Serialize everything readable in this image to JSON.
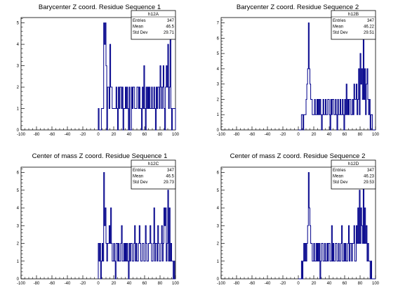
{
  "chart_data": [
    {
      "type": "histogram",
      "title": "Barycenter Z coord. Residue Sequence 1",
      "xlim": [
        -100,
        100
      ],
      "ylim": [
        0,
        5.25
      ],
      "xticks": [
        "-100",
        "-80",
        "-60",
        "-40",
        "-20",
        "0",
        "20",
        "40",
        "60",
        "80",
        "100"
      ],
      "yticks": [
        "0",
        "1",
        "2",
        "3",
        "4",
        "5"
      ],
      "bin_width": 1,
      "bin_start": 0,
      "values": [
        1,
        0,
        0,
        0,
        1,
        1,
        1,
        5,
        4,
        5,
        3,
        0,
        2,
        2,
        1,
        4,
        2,
        2,
        1,
        1,
        1,
        1,
        1,
        2,
        1,
        0,
        2,
        1,
        2,
        2,
        1,
        2,
        0,
        1,
        1,
        2,
        1,
        2,
        1,
        0,
        2,
        0,
        0,
        2,
        1,
        2,
        2,
        1,
        1,
        1,
        2,
        2,
        1,
        2,
        1,
        1,
        0,
        2,
        1,
        3,
        1,
        0,
        2,
        1,
        2,
        1,
        2,
        1,
        1,
        2,
        1,
        1,
        2,
        1,
        0,
        2,
        1,
        2,
        2,
        1,
        3,
        2,
        1,
        2,
        3,
        1,
        0,
        2,
        3,
        2,
        4,
        1,
        2,
        5,
        1,
        0,
        1,
        1,
        1,
        1
      ],
      "color": "#00008b",
      "stats": {
        "name": "h12A",
        "rows": [
          {
            "label": "Entries",
            "value": "347"
          },
          {
            "label": "Mean",
            "value": "46.5"
          },
          {
            "label": "Std Dev",
            "value": "29.71"
          }
        ]
      }
    },
    {
      "type": "histogram",
      "title": "Barycenter Z coord. Residue Sequence 2",
      "xlim": [
        -100,
        100
      ],
      "ylim": [
        0,
        7.35
      ],
      "xticks": [
        "-100",
        "-80",
        "-60",
        "-40",
        "-20",
        "0",
        "20",
        "40",
        "60",
        "80",
        "100"
      ],
      "yticks": [
        "0",
        "1",
        "2",
        "3",
        "4",
        "5",
        "6",
        "7"
      ],
      "bin_width": 1,
      "bin_start": 0,
      "values": [
        0,
        0,
        0,
        0,
        1,
        1,
        0,
        1,
        1,
        1,
        2,
        3,
        4,
        7,
        4,
        3,
        2,
        2,
        1,
        1,
        1,
        2,
        1,
        1,
        2,
        1,
        2,
        1,
        2,
        1,
        0,
        1,
        2,
        1,
        1,
        2,
        1,
        1,
        2,
        2,
        1,
        0,
        2,
        1,
        2,
        2,
        1,
        1,
        2,
        1,
        0,
        2,
        1,
        1,
        2,
        1,
        1,
        2,
        1,
        0,
        2,
        1,
        3,
        1,
        2,
        1,
        2,
        2,
        1,
        1,
        2,
        1,
        3,
        2,
        2,
        3,
        1,
        2,
        4,
        1,
        5,
        3,
        4,
        2,
        6,
        2,
        4,
        1,
        3,
        4,
        2,
        1,
        2,
        0,
        1,
        1,
        0,
        0,
        0,
        0
      ],
      "color": "#00008b",
      "stats": {
        "name": "h12B",
        "rows": [
          {
            "label": "Entries",
            "value": "347"
          },
          {
            "label": "Mean",
            "value": "46.22"
          },
          {
            "label": "Std Dev",
            "value": "29.51"
          }
        ]
      }
    },
    {
      "type": "histogram",
      "title": "Center of mass Z coord. Residue Sequence 1",
      "xlim": [
        -100,
        100
      ],
      "ylim": [
        0,
        6.3
      ],
      "xticks": [
        "-100",
        "-80",
        "-60",
        "-40",
        "-20",
        "0",
        "20",
        "40",
        "60",
        "80",
        "100"
      ],
      "yticks": [
        "0",
        "1",
        "2",
        "3",
        "4",
        "5",
        "6"
      ],
      "bin_width": 1,
      "bin_start": 0,
      "values": [
        2,
        1,
        2,
        0,
        1,
        2,
        1,
        6,
        3,
        4,
        2,
        1,
        2,
        2,
        3,
        2,
        4,
        2,
        1,
        1,
        2,
        1,
        0,
        2,
        2,
        1,
        2,
        1,
        1,
        2,
        3,
        1,
        1,
        2,
        1,
        2,
        1,
        2,
        1,
        0,
        2,
        1,
        2,
        2,
        1,
        1,
        2,
        3,
        1,
        2,
        1,
        1,
        2,
        3,
        2,
        1,
        1,
        2,
        2,
        1,
        1,
        3,
        2,
        1,
        1,
        2,
        2,
        3,
        2,
        1,
        1,
        2,
        4,
        1,
        2,
        2,
        1,
        3,
        2,
        1,
        1,
        2,
        3,
        1,
        2,
        4,
        3,
        4,
        1,
        2,
        5,
        1,
        4,
        1,
        2,
        1,
        1,
        0,
        1,
        0
      ],
      "color": "#00008b",
      "stats": {
        "name": "h12C",
        "rows": [
          {
            "label": "Entries",
            "value": "347"
          },
          {
            "label": "Mean",
            "value": "46.5"
          },
          {
            "label": "Std Dev",
            "value": "29.73"
          }
        ]
      }
    },
    {
      "type": "histogram",
      "title": "Center of mass Z coord. Residue Sequence 2",
      "xlim": [
        -100,
        100
      ],
      "ylim": [
        0,
        6.3
      ],
      "xticks": [
        "-100",
        "-80",
        "-60",
        "-40",
        "-20",
        "0",
        "20",
        "40",
        "60",
        "80",
        "100"
      ],
      "yticks": [
        "0",
        "1",
        "2",
        "3",
        "4",
        "5",
        "6"
      ],
      "bin_width": 1,
      "bin_start": 0,
      "values": [
        0,
        0,
        0,
        0,
        1,
        0,
        1,
        2,
        1,
        2,
        1,
        2,
        3,
        6,
        4,
        3,
        2,
        2,
        1,
        1,
        2,
        1,
        1,
        2,
        1,
        2,
        1,
        2,
        0,
        1,
        2,
        2,
        1,
        1,
        2,
        1,
        1,
        2,
        1,
        2,
        2,
        1,
        1,
        3,
        1,
        2,
        1,
        1,
        2,
        2,
        1,
        1,
        2,
        1,
        1,
        2,
        3,
        1,
        1,
        2,
        1,
        2,
        1,
        1,
        2,
        3,
        1,
        2,
        2,
        1,
        2,
        2,
        3,
        1,
        1,
        3,
        2,
        4,
        2,
        5,
        2,
        4,
        3,
        2,
        6,
        2,
        4,
        2,
        3,
        1,
        2,
        1,
        1,
        0,
        1,
        0,
        0,
        0,
        0,
        0
      ],
      "color": "#00008b",
      "stats": {
        "name": "h12D",
        "rows": [
          {
            "label": "Entries",
            "value": "347"
          },
          {
            "label": "Mean",
            "value": "46.23"
          },
          {
            "label": "Std Dev",
            "value": "29.53"
          }
        ]
      }
    }
  ]
}
